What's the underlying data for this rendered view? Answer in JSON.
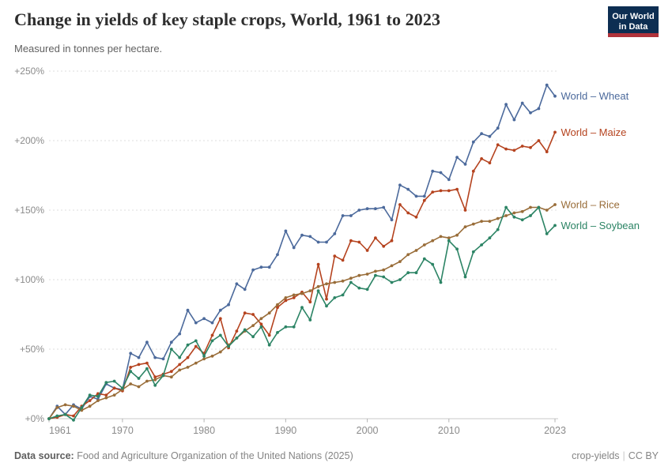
{
  "header": {
    "title": "Change in yields of key staple crops, World, 1961 to 2023",
    "subtitle": "Measured in tonnes per hectare.",
    "logo": {
      "line1": "Our World",
      "line2": "in Data"
    }
  },
  "footer": {
    "source_label": "Data source:",
    "source_text": "Food and Agriculture Organization of the United Nations (2025)",
    "right_note": "crop-yields",
    "separator": "|",
    "license": "CC BY"
  },
  "colors": {
    "wheat": "#4C6A9C",
    "maize": "#B5431F",
    "rice": "#996D39",
    "soybean": "#2C8465",
    "grid": "#DDDDDD",
    "axis": "#C8C8C8",
    "tick_mark": "#B3B3B3",
    "tick_text": "#8B8B8B",
    "logo_bg": "#0D2E52",
    "logo_stripe": "#B0333B"
  },
  "chart_data": {
    "type": "line",
    "title": "Change in yields of key staple crops, World, 1961 to 2023",
    "subtitle": "Measured in tonnes per hectare.",
    "xlim": [
      1961,
      2023
    ],
    "ylim": [
      0,
      250
    ],
    "grid": true,
    "legend_position": "right of line ends",
    "x_ticks": [
      1961,
      1970,
      1980,
      1990,
      2000,
      2010,
      2023
    ],
    "y_tick_values": [
      0,
      50,
      100,
      150,
      200,
      250
    ],
    "y_tick_labels": [
      "+0%",
      "+50%",
      "+100%",
      "+150%",
      "+200%",
      "+250%"
    ],
    "unit": "% change",
    "years": [
      1961,
      1962,
      1963,
      1964,
      1965,
      1966,
      1967,
      1968,
      1969,
      1970,
      1971,
      1972,
      1973,
      1974,
      1975,
      1976,
      1977,
      1978,
      1979,
      1980,
      1981,
      1982,
      1983,
      1984,
      1985,
      1986,
      1987,
      1988,
      1989,
      1990,
      1991,
      1992,
      1993,
      1994,
      1995,
      1996,
      1997,
      1998,
      1999,
      2000,
      2001,
      2002,
      2003,
      2004,
      2005,
      2006,
      2007,
      2008,
      2009,
      2010,
      2011,
      2012,
      2013,
      2014,
      2015,
      2016,
      2017,
      2018,
      2019,
      2020,
      2021,
      2022,
      2023
    ],
    "series": [
      {
        "name": "World – Wheat",
        "color_key": "wheat",
        "values": [
          0,
          9,
          3,
          10,
          7,
          16,
          14,
          25,
          22,
          21,
          47,
          44,
          55,
          44,
          43,
          55,
          61,
          78,
          69,
          72,
          69,
          78,
          82,
          97,
          93,
          107,
          109,
          109,
          118,
          135,
          123,
          132,
          131,
          127,
          127,
          133,
          146,
          146,
          150,
          151,
          151,
          152,
          143,
          168,
          165,
          160,
          160,
          178,
          177,
          172,
          188,
          183,
          199,
          205,
          203,
          209,
          226,
          215,
          227,
          220,
          223,
          240,
          232
        ]
      },
      {
        "name": "World – Maize",
        "color_key": "maize",
        "values": [
          0,
          1,
          3,
          2,
          9,
          13,
          18,
          17,
          22,
          20,
          37,
          39,
          40,
          30,
          32,
          34,
          39,
          44,
          52,
          47,
          60,
          72,
          51,
          63,
          76,
          75,
          68,
          60,
          80,
          85,
          87,
          91,
          84,
          111,
          86,
          117,
          114,
          128,
          127,
          121,
          130,
          124,
          128,
          154,
          148,
          145,
          157,
          163,
          164,
          164,
          165,
          150,
          178,
          187,
          184,
          197,
          194,
          193,
          196,
          195,
          200,
          192,
          206
        ]
      },
      {
        "name": "World – Rice",
        "color_key": "rice",
        "values": [
          0,
          8,
          10,
          9,
          6,
          9,
          13,
          15,
          17,
          21,
          25,
          23,
          27,
          28,
          31,
          30,
          35,
          37,
          40,
          43,
          45,
          48,
          53,
          58,
          63,
          67,
          72,
          76,
          82,
          87,
          89,
          90,
          92,
          95,
          97,
          98,
          99,
          101,
          103,
          104,
          106,
          107,
          110,
          113,
          118,
          121,
          125,
          128,
          131,
          130,
          132,
          138,
          140,
          142,
          142,
          144,
          146,
          148,
          149,
          152,
          152,
          150,
          154
        ]
      },
      {
        "name": "World – Soybean",
        "color_key": "soybean",
        "values": [
          0,
          2,
          3,
          -1,
          8,
          17,
          16,
          26,
          27,
          22,
          34,
          29,
          36,
          24,
          31,
          50,
          44,
          53,
          56,
          45,
          56,
          60,
          52,
          58,
          64,
          59,
          66,
          53,
          62,
          66,
          66,
          80,
          71,
          92,
          81,
          87,
          89,
          98,
          94,
          93,
          103,
          102,
          98,
          100,
          105,
          105,
          115,
          111,
          98,
          128,
          122,
          102,
          120,
          125,
          130,
          136,
          152,
          145,
          143,
          146,
          152,
          133,
          139
        ]
      }
    ]
  }
}
